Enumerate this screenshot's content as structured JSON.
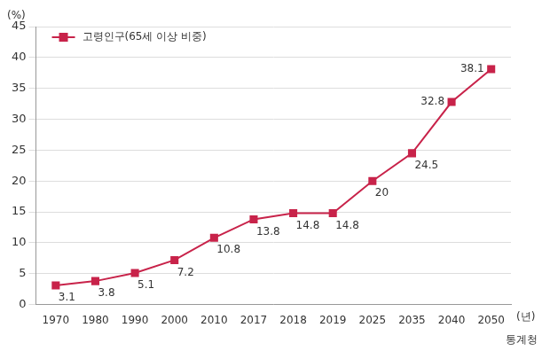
{
  "chart_data": {
    "type": "line",
    "categories": [
      "1970",
      "1980",
      "1990",
      "2000",
      "2010",
      "2017",
      "2018",
      "2019",
      "2025",
      "2035",
      "2040",
      "2050"
    ],
    "series": [
      {
        "name": "고령인구(65세 이상 비중)",
        "color": "#c8234a",
        "marker": "square",
        "values": [
          3.1,
          3.8,
          5.1,
          7.2,
          10.8,
          13.8,
          14.8,
          14.8,
          20,
          24.5,
          32.8,
          38.1
        ]
      }
    ],
    "y_label": "(%)",
    "x_label": "(년)",
    "source": "통계청",
    "ylim": [
      0,
      45
    ],
    "yticks": [
      0,
      5,
      10,
      15,
      20,
      25,
      30,
      35,
      40,
      45
    ],
    "grid": true,
    "legend": "upper left",
    "data_labels": true
  }
}
